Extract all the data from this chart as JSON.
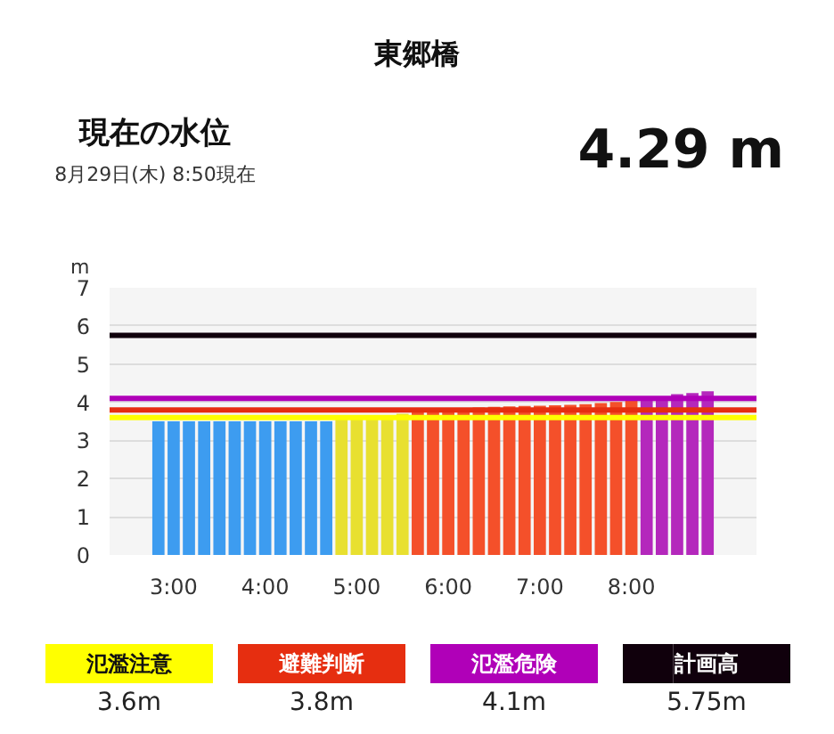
{
  "chart_data": {
    "type": "bar",
    "title": "東郷橋",
    "subtitle": "現在の水位",
    "ylabel": "m",
    "annotations": [
      "8月29日(木) 8:50現在",
      "4.29 m",
      "3.6m",
      "3.8m",
      "4.1m",
      "5.75m"
    ],
    "categories": [
      null,
      "3:00",
      null,
      null,
      null,
      null,
      null,
      "4:00",
      null,
      null,
      null,
      null,
      null,
      "5:00",
      null,
      null,
      null,
      null,
      null,
      "6:00",
      null,
      null,
      null,
      null,
      null,
      "7:00",
      null,
      null,
      null,
      null,
      null,
      "8:00",
      null,
      null,
      null,
      null,
      null
    ],
    "values": [
      3.5,
      3.5,
      3.5,
      3.5,
      3.5,
      3.5,
      3.5,
      3.5,
      3.5,
      3.5,
      3.5,
      3.5,
      3.6,
      3.61,
      3.63,
      3.66,
      3.7,
      3.8,
      3.82,
      3.84,
      3.85,
      3.86,
      3.88,
      3.89,
      3.9,
      3.91,
      3.92,
      3.93,
      3.95,
      3.98,
      4.01,
      4.04,
      4.12,
      4.15,
      4.21,
      4.24,
      4.29
    ],
    "colors": [
      "#3d9cf0",
      "#3d9cf0",
      "#3d9cf0",
      "#3d9cf0",
      "#3d9cf0",
      "#3d9cf0",
      "#3d9cf0",
      "#3d9cf0",
      "#3d9cf0",
      "#3d9cf0",
      "#3d9cf0",
      "#3d9cf0",
      "#e8e030",
      "#e8e030",
      "#e8e030",
      "#e8e030",
      "#e8e030",
      "#f4502a",
      "#f4502a",
      "#f4502a",
      "#f4502a",
      "#f4502a",
      "#f4502a",
      "#f4502a",
      "#f4502a",
      "#f4502a",
      "#f4502a",
      "#f4502a",
      "#f4502a",
      "#f4502a",
      "#f4502a",
      "#f4502a",
      "#b428bc",
      "#b428bc",
      "#b428bc",
      "#b428bc",
      "#b428bc"
    ],
    "legend": "bottom",
    "ylim": [
      0,
      7
    ],
    "yticks": [
      0,
      1,
      2,
      3,
      4,
      5,
      6,
      7
    ],
    "grid": "y",
    "ref_lines": [
      {
        "axis": "y",
        "value": 3.6,
        "label": "氾濫注意",
        "color": "#ffff00"
      },
      {
        "axis": "y",
        "value": 3.8,
        "label": "避難判断",
        "color": "#e62e10"
      },
      {
        "axis": "y",
        "value": 4.1,
        "label": "氾濫危険",
        "color": "#b000b8"
      },
      {
        "axis": "y",
        "value": 5.75,
        "label": "計画高",
        "color": "#10000c"
      }
    ]
  }
}
